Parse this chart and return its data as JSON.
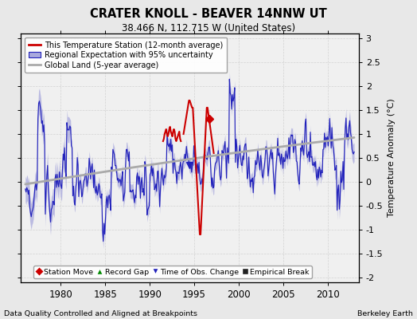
{
  "title": "CRATER KNOLL - BEAVER 14NNW UT",
  "subtitle": "38.466 N, 112.715 W (United States)",
  "ylabel": "Temperature Anomaly (°C)",
  "footer_left": "Data Quality Controlled and Aligned at Breakpoints",
  "footer_right": "Berkeley Earth",
  "xlim": [
    1975.5,
    2013.5
  ],
  "ylim": [
    -2.1,
    3.1
  ],
  "yticks": [
    -2,
    -1.5,
    -1,
    -0.5,
    0,
    0.5,
    1,
    1.5,
    2,
    2.5,
    3
  ],
  "xticks": [
    1980,
    1985,
    1990,
    1995,
    2000,
    2005,
    2010
  ],
  "bg_color": "#e8e8e8",
  "plot_bg_color": "#f0f0f0",
  "regional_color": "#2222bb",
  "regional_fill_color": "#aaaadd",
  "station_color": "#cc0000",
  "global_color": "#aaaaaa",
  "legend1_items": [
    {
      "label": "This Temperature Station (12-month average)",
      "color": "#cc0000"
    },
    {
      "label": "Regional Expectation with 95% uncertainty",
      "color": "#2222bb"
    },
    {
      "label": "Global Land (5-year average)",
      "color": "#aaaaaa"
    }
  ],
  "legend2_items": [
    {
      "label": "Station Move",
      "color": "#cc0000",
      "marker": "D"
    },
    {
      "label": "Record Gap",
      "color": "#008800",
      "marker": "^"
    },
    {
      "label": "Time of Obs. Change",
      "color": "#2222bb",
      "marker": "v"
    },
    {
      "label": "Empirical Break",
      "color": "#222222",
      "marker": "s"
    }
  ]
}
